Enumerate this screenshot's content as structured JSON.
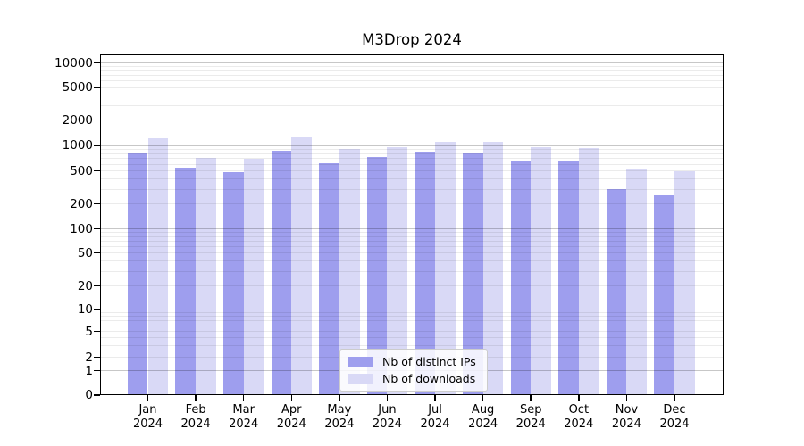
{
  "chart_data": {
    "type": "bar",
    "title": "M3Drop 2024",
    "xlabel": "",
    "ylabel": "",
    "y_scale": "symlog",
    "y_ticks": [
      10000,
      5000,
      2000,
      1000,
      500,
      200,
      100,
      50,
      20,
      10,
      5,
      2,
      1,
      0
    ],
    "ylim": [
      0,
      13000
    ],
    "grid": "on",
    "categories": [
      "Jan",
      "Feb",
      "Mar",
      "Apr",
      "May",
      "Jun",
      "Jul",
      "Aug",
      "Sep",
      "Oct",
      "Nov",
      "Dec"
    ],
    "x_year": "2024",
    "series": [
      {
        "name": "Nb of distinct IPs",
        "color": "#9e9eee",
        "values": [
          830,
          545,
          480,
          870,
          620,
          730,
          840,
          830,
          650,
          650,
          300,
          250
        ]
      },
      {
        "name": "Nb of downloads",
        "color": "#d9d9f6",
        "values": [
          1230,
          720,
          700,
          1240,
          920,
          960,
          1100,
          1110,
          950,
          940,
          520,
          490
        ]
      }
    ],
    "legend": {
      "position": "lower center",
      "entries": [
        "Nb of distinct IPs",
        "Nb of downloads"
      ]
    }
  }
}
